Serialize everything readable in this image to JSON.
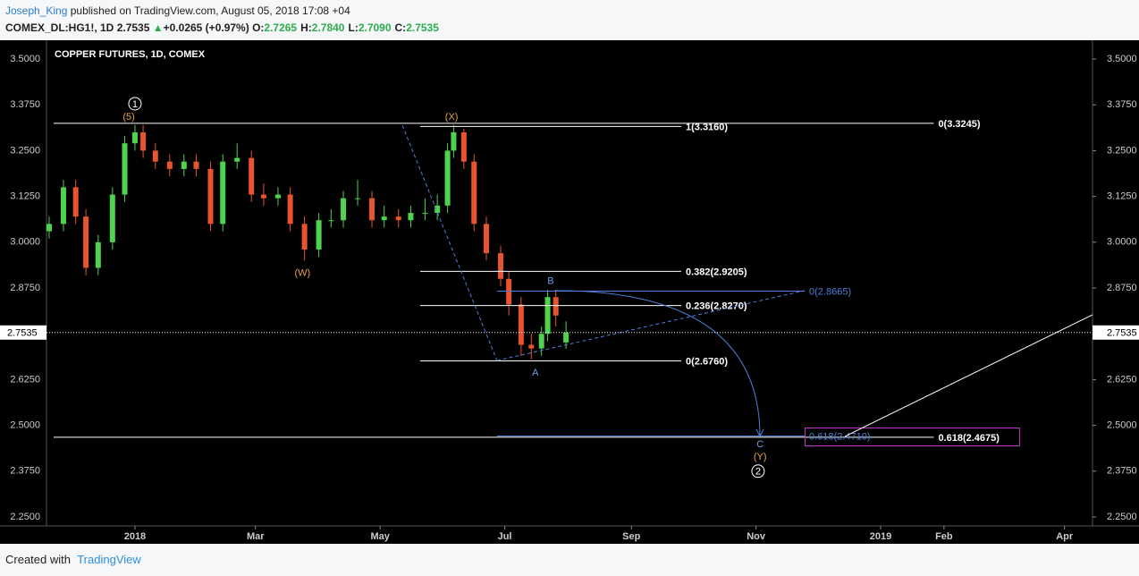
{
  "header": {
    "author": "Joseph_King",
    "published": "published on TradingView.com, August 05, 2018 17:08 +04",
    "symbol": "COMEX_DL:HG1!, 1D",
    "last": "2.7535",
    "arrow": "▲",
    "change": "+0.0265 (+0.97%)",
    "ohlc": [
      {
        "label": "O:",
        "value": "2.7265"
      },
      {
        "label": "H:",
        "value": "2.7840"
      },
      {
        "label": "L:",
        "value": "2.7090"
      },
      {
        "label": "C:",
        "value": "2.7535"
      }
    ]
  },
  "footer": {
    "created": "Created with",
    "brand": "TradingView"
  },
  "chart_data": {
    "type": "candlestick",
    "title": "COPPER FUTURES, 1D, COMEX",
    "x": [
      -42,
      -35,
      -29,
      -24,
      -18,
      -11,
      -5,
      0,
      4,
      10,
      17,
      24,
      30,
      37,
      43,
      50,
      57,
      63,
      70,
      76,
      83,
      90,
      96,
      102,
      109,
      116,
      122,
      129,
      135,
      142,
      148,
      153,
      156,
      161,
      166,
      172,
      179,
      183,
      189,
      194,
      199,
      202,
      206,
      211
    ],
    "open": [
      3.03,
      3.05,
      3.15,
      3.07,
      2.93,
      3.0,
      3.13,
      3.27,
      3.3,
      3.25,
      3.22,
      3.2,
      3.22,
      3.2,
      3.05,
      3.22,
      3.23,
      3.13,
      3.12,
      3.13,
      3.05,
      2.98,
      3.06,
      3.06,
      3.12,
      3.12,
      3.06,
      3.07,
      3.06,
      3.08,
      3.08,
      3.1,
      3.25,
      3.3,
      3.22,
      3.05,
      2.97,
      2.9,
      2.83,
      2.72,
      2.71,
      2.75,
      2.85,
      2.7265
    ],
    "high": [
      3.07,
      3.17,
      3.17,
      3.09,
      3.02,
      3.15,
      3.29,
      3.32,
      3.32,
      3.27,
      3.24,
      3.24,
      3.24,
      3.22,
      3.24,
      3.27,
      3.25,
      3.16,
      3.15,
      3.15,
      3.07,
      3.08,
      3.09,
      3.14,
      3.17,
      3.14,
      3.1,
      3.09,
      3.1,
      3.12,
      3.13,
      3.27,
      3.32,
      3.31,
      3.24,
      3.07,
      2.99,
      2.92,
      2.85,
      2.75,
      2.77,
      2.87,
      2.87,
      2.784
    ],
    "low": [
      3.01,
      3.03,
      3.05,
      2.91,
      2.91,
      2.98,
      3.11,
      3.25,
      3.23,
      3.2,
      3.18,
      3.18,
      3.18,
      3.03,
      3.03,
      3.2,
      3.11,
      3.1,
      3.1,
      3.03,
      2.95,
      2.96,
      3.04,
      3.04,
      3.1,
      3.04,
      3.04,
      3.04,
      3.04,
      3.06,
      3.06,
      3.08,
      3.23,
      3.2,
      3.03,
      2.95,
      2.88,
      2.8,
      2.69,
      2.68,
      2.69,
      2.73,
      2.77,
      2.709
    ],
    "close": [
      3.05,
      3.15,
      3.07,
      2.93,
      3.0,
      3.13,
      3.27,
      3.3,
      3.25,
      3.22,
      3.2,
      3.22,
      3.2,
      3.05,
      3.22,
      3.23,
      3.13,
      3.12,
      3.13,
      3.05,
      2.98,
      3.06,
      3.06,
      3.12,
      3.12,
      3.06,
      3.07,
      3.06,
      3.08,
      3.08,
      3.1,
      3.25,
      3.3,
      3.22,
      3.05,
      2.97,
      2.9,
      2.83,
      2.72,
      2.71,
      2.75,
      2.85,
      2.8,
      2.7535
    ],
    "up_color": "#4fd34f",
    "down_color": "#e8542e",
    "xlim": [
      -43.3,
      468.7
    ],
    "xticks": [
      {
        "value": 0,
        "label": "2018"
      },
      {
        "value": 59,
        "label": "Mar"
      },
      {
        "value": 120,
        "label": "May"
      },
      {
        "value": 181,
        "label": "Jul"
      },
      {
        "value": 243,
        "label": "Sep"
      },
      {
        "value": 304,
        "label": "Nov"
      },
      {
        "value": 365,
        "label": "2019"
      },
      {
        "value": 396,
        "label": "Feb"
      },
      {
        "value": 455,
        "label": "Apr"
      }
    ],
    "ylim": [
      2.2256,
      3.5513
    ],
    "yticks": [
      {
        "value": 3.5,
        "label": "3.5000"
      },
      {
        "value": 3.375,
        "label": "3.3750"
      },
      {
        "value": 3.25,
        "label": "3.2500"
      },
      {
        "value": 3.125,
        "label": "3.1250"
      },
      {
        "value": 3.0,
        "label": "3.0000"
      },
      {
        "value": 2.875,
        "label": "2.8750"
      },
      {
        "value": 2.625,
        "label": "2.6250"
      },
      {
        "value": 2.5,
        "label": "2.5000"
      },
      {
        "value": 2.375,
        "label": "2.3750"
      },
      {
        "value": 2.25,
        "label": "2.2500"
      }
    ],
    "last_price": {
      "value": 2.7535,
      "label": "2.7535"
    },
    "levels": [
      {
        "label": "0(3.3245)",
        "value": 3.3245,
        "x": [
          -39.8,
          391
        ],
        "color": "#ffffff"
      },
      {
        "label": "1(3.3160)",
        "value": 3.316,
        "x": [
          139.6,
          267.4
        ],
        "color": "#ffffff"
      },
      {
        "label": "0.382(2.9205)",
        "value": 2.9205,
        "x": [
          139.6,
          267.4
        ],
        "color": "#ffffff"
      },
      {
        "label": "0.236(2.8270)",
        "value": 2.827,
        "x": [
          139.6,
          267.4
        ],
        "color": "#ffffff"
      },
      {
        "label": "0(2.6760)",
        "value": 2.676,
        "x": [
          139.6,
          267.4
        ],
        "color": "#ffffff"
      },
      {
        "label": "0.618(2.4675)",
        "value": 2.4675,
        "x": [
          -39.8,
          391
        ],
        "color": "#ffffff"
      },
      {
        "label": "0(2.8665)",
        "value": 2.8665,
        "x": [
          177.2,
          327.8
        ],
        "color": "#4d7fd9"
      },
      {
        "label": "0.618(2.4710)",
        "value": 2.471,
        "x": [
          177.2,
          327.8
        ],
        "color": "#4d7fd9"
      }
    ],
    "trendlines": [
      {
        "x": [
          130.9,
          177.2
        ],
        "y": [
          3.319,
          2.677
        ],
        "color": "#4d7fd9",
        "dashed": true
      },
      {
        "x": [
          177.2,
          327.8
        ],
        "y": [
          2.677,
          2.868
        ],
        "color": "#4d7fd9",
        "dashed": true
      },
      {
        "x": [
          347.5,
          468.7
        ],
        "y": [
          2.47,
          2.802
        ],
        "color": "#ffffff",
        "dashed": false
      }
    ],
    "arrows": [
      {
        "x": [
          205.3,
          305.9
        ],
        "y": [
          2.868,
          2.47
        ],
        "color": "#4d7fd9"
      }
    ],
    "box": {
      "x": [
        328,
        433
      ],
      "y": [
        2.493,
        2.444
      ],
      "color": "#c03ccc"
    },
    "waves": [
      {
        "label": "1",
        "x": 0,
        "y": 3.378,
        "color": "#ffffff",
        "circled": true
      },
      {
        "label": "(5)",
        "x": -3,
        "y": 3.344,
        "color": "#e8a050",
        "circled": false
      },
      {
        "label": "(X)",
        "x": 155,
        "y": 3.344,
        "color": "#e8a050",
        "circled": false
      },
      {
        "label": "(W)",
        "x": 82,
        "y": 2.917,
        "color": "#e8a050",
        "circled": false
      },
      {
        "label": "B",
        "x": 203.5,
        "y": 2.895,
        "color": "#6f9be8",
        "circled": false
      },
      {
        "label": "A",
        "x": 196,
        "y": 2.645,
        "color": "#6f9be8",
        "circled": false
      },
      {
        "label": "C",
        "x": 306,
        "y": 2.45,
        "color": "#6f9be8",
        "circled": false
      },
      {
        "label": "(Y)",
        "x": 306,
        "y": 2.416,
        "color": "#e8a050",
        "circled": false
      },
      {
        "label": "2",
        "x": 305,
        "y": 2.375,
        "color": "#ffffff",
        "circled": true
      }
    ]
  }
}
